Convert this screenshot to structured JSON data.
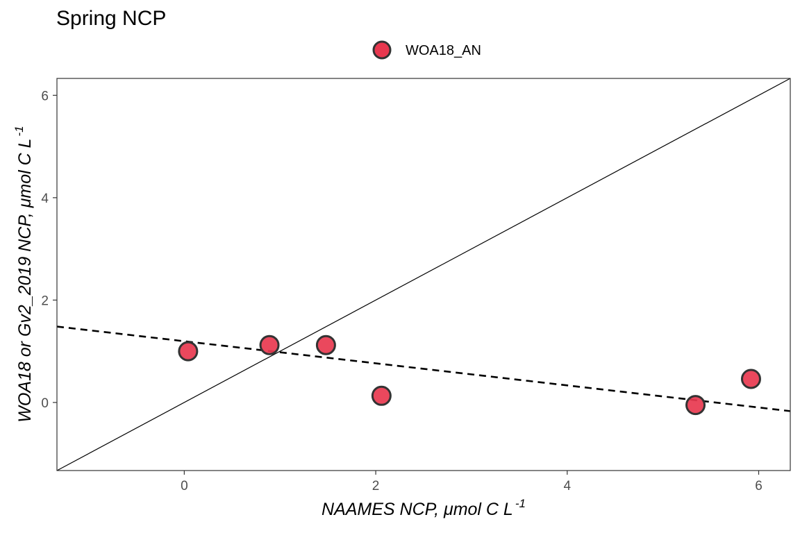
{
  "chart_data": {
    "type": "scatter",
    "title": "Spring NCP",
    "xlabel": "NAAMES NCP, μmol C L",
    "xlabel_superscript": "-1",
    "ylabel": "WOA18 or Gv2_2019 NCP, μmol C L",
    "ylabel_superscript": "-1",
    "xlim": [
      -1.33,
      6.33
    ],
    "ylim": [
      -1.33,
      6.33
    ],
    "x_ticks": [
      0,
      2,
      4,
      6
    ],
    "y_ticks": [
      0,
      2,
      4,
      6
    ],
    "grid": false,
    "legend_position": "top",
    "series": [
      {
        "name": "WOA18_AN",
        "color": "#e8384f",
        "points": [
          {
            "x": 0.04,
            "y": 1.0
          },
          {
            "x": 0.89,
            "y": 1.12
          },
          {
            "x": 1.48,
            "y": 1.12
          },
          {
            "x": 2.06,
            "y": 0.13
          },
          {
            "x": 5.34,
            "y": -0.05
          },
          {
            "x": 5.92,
            "y": 0.46
          }
        ]
      }
    ],
    "reference_lines": [
      {
        "kind": "one-to-one",
        "style": "solid",
        "slope": 1,
        "intercept": 0
      },
      {
        "kind": "regression",
        "style": "dashed",
        "slope": -0.2157,
        "intercept": 1.196
      }
    ]
  }
}
